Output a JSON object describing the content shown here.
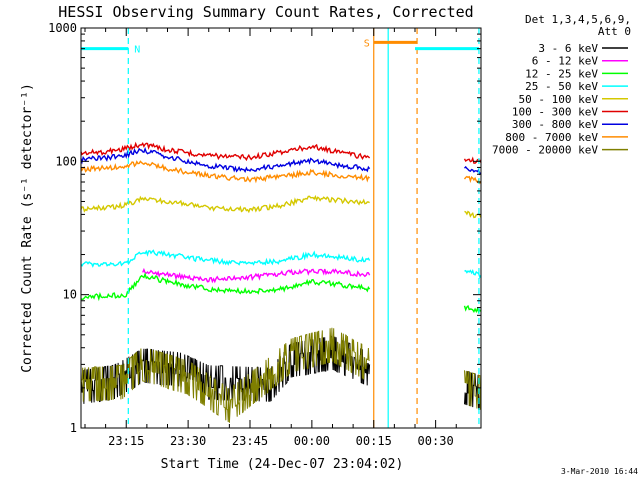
{
  "chart_data": {
    "type": "line",
    "title": "HESSI Observing Summary Count Rates, Corrected",
    "xlabel": "Start Time (24-Dec-07 23:04:02)",
    "ylabel": "Corrected Count Rate (s⁻¹ detector⁻¹)",
    "yscale": "log",
    "ylim": [
      1,
      1000
    ],
    "xlim": [
      "23:04:02",
      "00:41:00"
    ],
    "x_tick_labels": [
      "23:15",
      "23:30",
      "23:45",
      "00:00",
      "00:15",
      "00:30"
    ],
    "y_tick_labels": [
      "1",
      "10",
      "100",
      "1000"
    ],
    "legend": {
      "header": [
        "Det 1,3,4,5,6,9,",
        "Att 0"
      ],
      "entries": [
        {
          "label": "3 - 6 keV",
          "color": "#000000"
        },
        {
          "label": "6 - 12 keV",
          "color": "#ff00ff"
        },
        {
          "label": "12 - 25 keV",
          "color": "#00ff00"
        },
        {
          "label": "25 - 50 keV",
          "color": "#00ffff"
        },
        {
          "label": "50 - 100 keV",
          "color": "#d4c800"
        },
        {
          "label": "100 - 300 keV",
          "color": "#e00000"
        },
        {
          "label": "300 - 800 keV",
          "color": "#0000e0"
        },
        {
          "label": "800 - 7000 keV",
          "color": "#ff8c00"
        },
        {
          "label": "7000 - 20000 keV",
          "color": "#7f7f00"
        }
      ],
      "placement": "right"
    },
    "annotations": [
      {
        "label": "N",
        "color": "#00ffff"
      },
      {
        "label": "S",
        "color": "#ff8c00"
      }
    ],
    "series": [
      {
        "name": "100 - 300 keV",
        "color": "#e00000",
        "segments": [
          [
            [
              "23:04",
              115
            ],
            [
              "23:10",
              118
            ],
            [
              "23:15",
              125
            ],
            [
              "23:19",
              135
            ],
            [
              "23:25",
              122
            ],
            [
              "23:35",
              110
            ],
            [
              "23:45",
              107
            ],
            [
              "23:53",
              118
            ],
            [
              "00:00",
              130
            ],
            [
              "00:06",
              118
            ],
            [
              "00:14",
              106
            ]
          ],
          [
            [
              "00:37",
              105
            ],
            [
              "00:41",
              98
            ]
          ]
        ]
      },
      {
        "name": "300 - 800 keV",
        "color": "#0000e0",
        "segments": [
          [
            [
              "23:04",
              103
            ],
            [
              "23:10",
              106
            ],
            [
              "23:15",
              112
            ],
            [
              "23:19",
              122
            ],
            [
              "23:25",
              108
            ],
            [
              "23:35",
              92
            ],
            [
              "23:45",
              86
            ],
            [
              "23:53",
              94
            ],
            [
              "00:00",
              102
            ],
            [
              "00:06",
              94
            ],
            [
              "00:14",
              88
            ]
          ],
          [
            [
              "00:37",
              90
            ],
            [
              "00:41",
              82
            ]
          ]
        ]
      },
      {
        "name": "800 - 7000 keV",
        "color": "#ff8c00",
        "segments": [
          [
            [
              "23:04",
              87
            ],
            [
              "23:10",
              89
            ],
            [
              "23:15",
              92
            ],
            [
              "23:19",
              100
            ],
            [
              "23:25",
              88
            ],
            [
              "23:35",
              78
            ],
            [
              "23:45",
              73
            ],
            [
              "23:53",
              77
            ],
            [
              "00:00",
              83
            ],
            [
              "00:06",
              78
            ],
            [
              "00:14",
              75
            ]
          ],
          [
            [
              "00:37",
              76
            ],
            [
              "00:41",
              71
            ]
          ]
        ]
      },
      {
        "name": "50 - 100 keV",
        "color": "#d4c800",
        "segments": [
          [
            [
              "23:04",
              44
            ],
            [
              "23:10",
              45
            ],
            [
              "23:15",
              47
            ],
            [
              "23:19",
              53
            ],
            [
              "23:25",
              50
            ],
            [
              "23:35",
              45
            ],
            [
              "23:45",
              43
            ],
            [
              "23:53",
              47
            ],
            [
              "00:00",
              54
            ],
            [
              "00:06",
              51
            ],
            [
              "00:14",
              49
            ]
          ],
          [
            [
              "00:37",
              41
            ],
            [
              "00:41",
              38
            ]
          ]
        ]
      },
      {
        "name": "25 - 50 keV",
        "color": "#00ffff",
        "segments": [
          [
            [
              "23:04",
              17
            ],
            [
              "23:15",
              17
            ],
            [
              "23:19",
              21
            ],
            [
              "23:25",
              20
            ],
            [
              "23:35",
              18
            ],
            [
              "23:45",
              17
            ],
            [
              "23:53",
              18
            ],
            [
              "00:00",
              20
            ],
            [
              "00:06",
              19
            ],
            [
              "00:14",
              18
            ]
          ],
          [
            [
              "00:37",
              15
            ],
            [
              "00:41",
              14
            ]
          ]
        ]
      },
      {
        "name": "6 - 12 keV",
        "color": "#ff00ff",
        "segments": [
          [
            [
              "23:19",
              15
            ],
            [
              "23:25",
              14
            ],
            [
              "23:35",
              13
            ],
            [
              "23:45",
              13.5
            ],
            [
              "23:53",
              14.5
            ],
            [
              "00:00",
              15
            ],
            [
              "00:06",
              15
            ],
            [
              "00:14",
              14
            ]
          ]
        ]
      },
      {
        "name": "12 - 25 keV",
        "color": "#00ff00",
        "segments": [
          [
            [
              "23:04",
              9.5
            ],
            [
              "23:15",
              10
            ],
            [
              "23:19",
              14
            ],
            [
              "23:25",
              12.5
            ],
            [
              "23:35",
              11
            ],
            [
              "23:45",
              10.5
            ],
            [
              "23:53",
              11
            ],
            [
              "00:00",
              12.5
            ],
            [
              "00:06",
              12
            ],
            [
              "00:14",
              11
            ]
          ],
          [
            [
              "00:37",
              8
            ],
            [
              "00:41",
              7.5
            ]
          ]
        ]
      },
      {
        "name": "3 - 6 keV",
        "color": "#000000",
        "segments": [
          [
            [
              "23:04",
              2.2
            ],
            [
              "23:12",
              2.4
            ],
            [
              "23:19",
              3.2
            ],
            [
              "23:28",
              3
            ],
            [
              "23:35",
              2.4
            ],
            [
              "23:50",
              2.3
            ],
            [
              "23:55",
              3.5
            ],
            [
              "00:05",
              4
            ],
            [
              "00:14",
              3
            ]
          ],
          [
            [
              "00:37",
              2.2
            ],
            [
              "00:41",
              2
            ]
          ]
        ]
      },
      {
        "name": "7000 - 20000 keV",
        "color": "#7f7f00",
        "segments": [
          [
            [
              "23:04",
              2.3
            ],
            [
              "23:14",
              2.4
            ],
            [
              "23:19",
              3.3
            ],
            [
              "23:30",
              2.6
            ],
            [
              "23:40",
              1.6
            ],
            [
              "23:48",
              2.5
            ],
            [
              "23:55",
              3.8
            ],
            [
              "00:05",
              4.6
            ],
            [
              "00:14",
              3.2
            ]
          ],
          [
            [
              "00:37",
              2.2
            ],
            [
              "00:41",
              2
            ]
          ]
        ]
      }
    ],
    "state_bars": [
      {
        "label": "N",
        "color": "#00ffff",
        "y": 700,
        "segments": [
          [
            "23:04",
            "23:15:30"
          ],
          [
            "00:25",
            "00:40:30"
          ]
        ]
      },
      {
        "label": "S",
        "color": "#ff8c00",
        "y": 780,
        "segments": [
          [
            "00:15",
            "00:25:30"
          ]
        ]
      }
    ],
    "event_lines": [
      {
        "color": "#00ffff",
        "style": "dashed",
        "x": "23:15:30"
      },
      {
        "color": "#ff8c00",
        "style": "solid",
        "x": "00:15"
      },
      {
        "color": "#00ffff",
        "style": "solid",
        "x": "00:18:30"
      },
      {
        "color": "#ff8c00",
        "style": "dashed",
        "x": "00:25:30"
      },
      {
        "color": "#00ffff",
        "style": "dashed",
        "x": "00:40:30"
      }
    ],
    "grid": false
  },
  "footer": {
    "stamp": "3-Mar-2010 16:44"
  }
}
